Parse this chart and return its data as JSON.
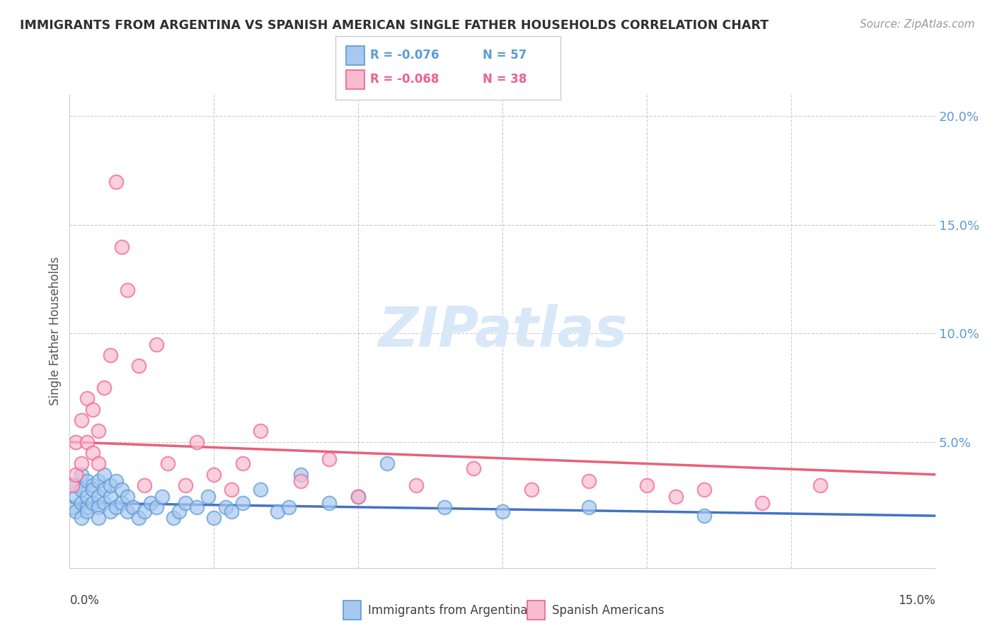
{
  "title": "IMMIGRANTS FROM ARGENTINA VS SPANISH AMERICAN SINGLE FATHER HOUSEHOLDS CORRELATION CHART",
  "source": "Source: ZipAtlas.com",
  "ylabel": "Single Father Households",
  "legend_blue_r": "R = -0.076",
  "legend_blue_n": "N = 57",
  "legend_pink_r": "R = -0.068",
  "legend_pink_n": "N = 38",
  "legend_label_blue": "Immigrants from Argentina",
  "legend_label_pink": "Spanish Americans",
  "xlim": [
    0.0,
    0.15
  ],
  "ylim": [
    -0.008,
    0.21
  ],
  "yticks": [
    0.0,
    0.05,
    0.1,
    0.15,
    0.2
  ],
  "ytick_labels": [
    "",
    "5.0%",
    "10.0%",
    "15.0%",
    "20.0%"
  ],
  "blue_fill": "#A8C8F0",
  "blue_edge": "#5B9BD5",
  "pink_fill": "#F8BBD0",
  "pink_edge": "#F06090",
  "blue_line_color": "#4472C4",
  "pink_line_color": "#E8607A",
  "title_color": "#303030",
  "source_color": "#999999",
  "axis_label_color": "#5B9BD5",
  "watermark_color": "#D8E8F8",
  "blue_scatter_x": [
    0.0005,
    0.001,
    0.001,
    0.001,
    0.002,
    0.002,
    0.002,
    0.002,
    0.003,
    0.003,
    0.003,
    0.003,
    0.004,
    0.004,
    0.004,
    0.005,
    0.005,
    0.005,
    0.005,
    0.006,
    0.006,
    0.006,
    0.007,
    0.007,
    0.007,
    0.008,
    0.008,
    0.009,
    0.009,
    0.01,
    0.01,
    0.011,
    0.012,
    0.013,
    0.014,
    0.015,
    0.016,
    0.018,
    0.019,
    0.02,
    0.022,
    0.024,
    0.025,
    0.027,
    0.028,
    0.03,
    0.033,
    0.036,
    0.038,
    0.04,
    0.045,
    0.05,
    0.055,
    0.065,
    0.075,
    0.09,
    0.11
  ],
  "blue_scatter_y": [
    0.02,
    0.025,
    0.018,
    0.03,
    0.022,
    0.028,
    0.015,
    0.035,
    0.02,
    0.025,
    0.032,
    0.018,
    0.03,
    0.022,
    0.028,
    0.025,
    0.02,
    0.032,
    0.015,
    0.028,
    0.022,
    0.035,
    0.018,
    0.025,
    0.03,
    0.02,
    0.032,
    0.022,
    0.028,
    0.018,
    0.025,
    0.02,
    0.015,
    0.018,
    0.022,
    0.02,
    0.025,
    0.015,
    0.018,
    0.022,
    0.02,
    0.025,
    0.015,
    0.02,
    0.018,
    0.022,
    0.028,
    0.018,
    0.02,
    0.035,
    0.022,
    0.025,
    0.04,
    0.02,
    0.018,
    0.02,
    0.016
  ],
  "pink_scatter_x": [
    0.0005,
    0.001,
    0.001,
    0.002,
    0.002,
    0.003,
    0.003,
    0.004,
    0.004,
    0.005,
    0.005,
    0.006,
    0.007,
    0.008,
    0.009,
    0.01,
    0.012,
    0.013,
    0.015,
    0.017,
    0.02,
    0.022,
    0.025,
    0.028,
    0.03,
    0.033,
    0.04,
    0.045,
    0.05,
    0.06,
    0.07,
    0.08,
    0.09,
    0.1,
    0.105,
    0.11,
    0.12,
    0.13
  ],
  "pink_scatter_y": [
    0.03,
    0.035,
    0.05,
    0.04,
    0.06,
    0.05,
    0.07,
    0.045,
    0.065,
    0.055,
    0.04,
    0.075,
    0.09,
    0.17,
    0.14,
    0.12,
    0.085,
    0.03,
    0.095,
    0.04,
    0.03,
    0.05,
    0.035,
    0.028,
    0.04,
    0.055,
    0.032,
    0.042,
    0.025,
    0.03,
    0.038,
    0.028,
    0.032,
    0.03,
    0.025,
    0.028,
    0.022,
    0.03
  ],
  "blue_trendline_x": [
    0.0,
    0.15
  ],
  "blue_trendline_y": [
    0.022,
    0.016
  ],
  "pink_trendline_x": [
    0.0,
    0.15
  ],
  "pink_trendline_y": [
    0.05,
    0.035
  ]
}
